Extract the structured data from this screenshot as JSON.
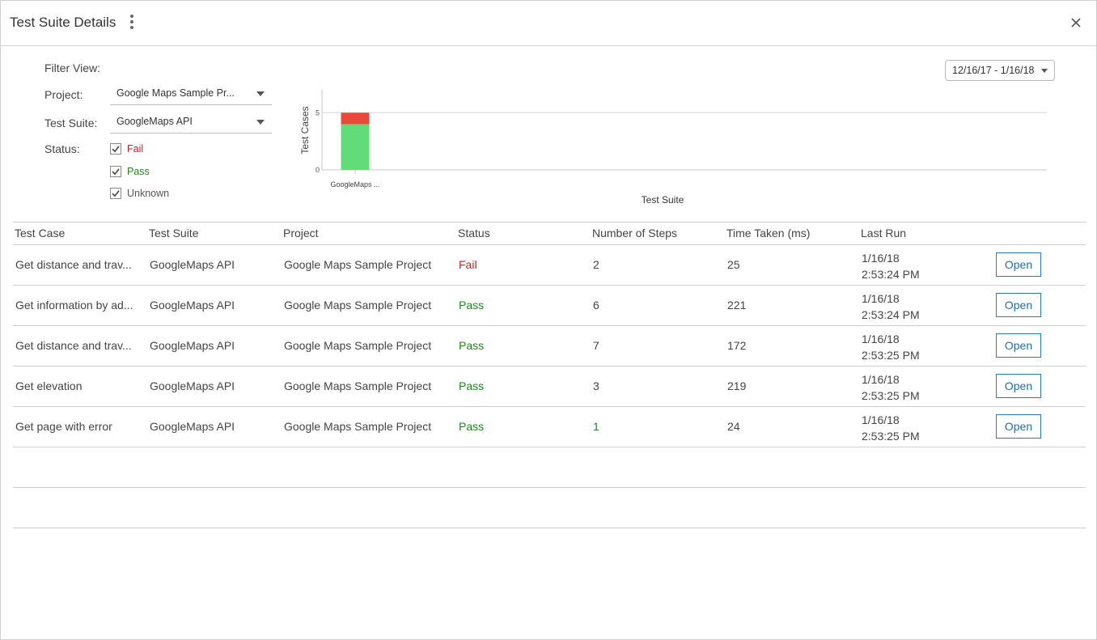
{
  "window": {
    "title": "Test Suite Details"
  },
  "filters": {
    "heading": "Filter View:",
    "project_label": "Project:",
    "project_value": "Google Maps Sample Pr...",
    "suite_label": "Test Suite:",
    "suite_value": "GoogleMaps API",
    "status_label": "Status:",
    "status_options": [
      {
        "label": "Fail",
        "checked": true,
        "color": "#c0232b"
      },
      {
        "label": "Pass",
        "checked": true,
        "color": "#1a8a1a"
      },
      {
        "label": "Unknown",
        "checked": true,
        "color": "#555555"
      }
    ]
  },
  "date_range": "12/16/17 - 1/16/18",
  "chart_data": {
    "type": "bar",
    "stacked": true,
    "categories": [
      "GoogleMaps ..."
    ],
    "series": [
      {
        "values": [
          4
        ],
        "color": "#62dc78"
      },
      {
        "values": [
          1
        ],
        "color": "#e84a3a"
      }
    ],
    "xlabel": "Test Suite",
    "ylabel": "Test Cases",
    "yticks": [
      0,
      5
    ],
    "ylim": [
      0,
      7
    ],
    "grid": true
  },
  "table": {
    "columns": [
      "Test Case",
      "Test Suite",
      "Project",
      "Status",
      "Number of Steps",
      "Time Taken (ms)",
      "Last Run"
    ],
    "rows": [
      {
        "test_case": "Get distance and trav...",
        "suite": "GoogleMaps API",
        "project": "Google Maps Sample Project",
        "status": "Fail",
        "steps": "2",
        "time": "25",
        "date": "1/16/18",
        "clock": "2:53:24 PM",
        "action": "Open"
      },
      {
        "test_case": "Get information by ad...",
        "suite": "GoogleMaps API",
        "project": "Google Maps Sample Project",
        "status": "Pass",
        "steps": "6",
        "time": "221",
        "date": "1/16/18",
        "clock": "2:53:24 PM",
        "action": "Open"
      },
      {
        "test_case": "Get distance and trav...",
        "suite": "GoogleMaps API",
        "project": "Google Maps Sample Project",
        "status": "Pass",
        "steps": "7",
        "time": "172",
        "date": "1/16/18",
        "clock": "2:53:25 PM",
        "action": "Open"
      },
      {
        "test_case": "Get elevation",
        "suite": "GoogleMaps API",
        "project": "Google Maps Sample Project",
        "status": "Pass",
        "steps": "3",
        "time": "219",
        "date": "1/16/18",
        "clock": "2:53:25 PM",
        "action": "Open"
      },
      {
        "test_case": "Get page with error",
        "suite": "GoogleMaps API",
        "project": "Google Maps Sample Project",
        "status": "Pass",
        "steps": "1",
        "time": "24",
        "date": "1/16/18",
        "clock": "2:53:25 PM",
        "action": "Open"
      }
    ],
    "empty_rows": 2
  },
  "icons": {
    "menu": "kebab-menu-icon",
    "close": "close-icon",
    "dropdown": "chevron-down-icon",
    "checkbox": "checkmark-icon"
  }
}
